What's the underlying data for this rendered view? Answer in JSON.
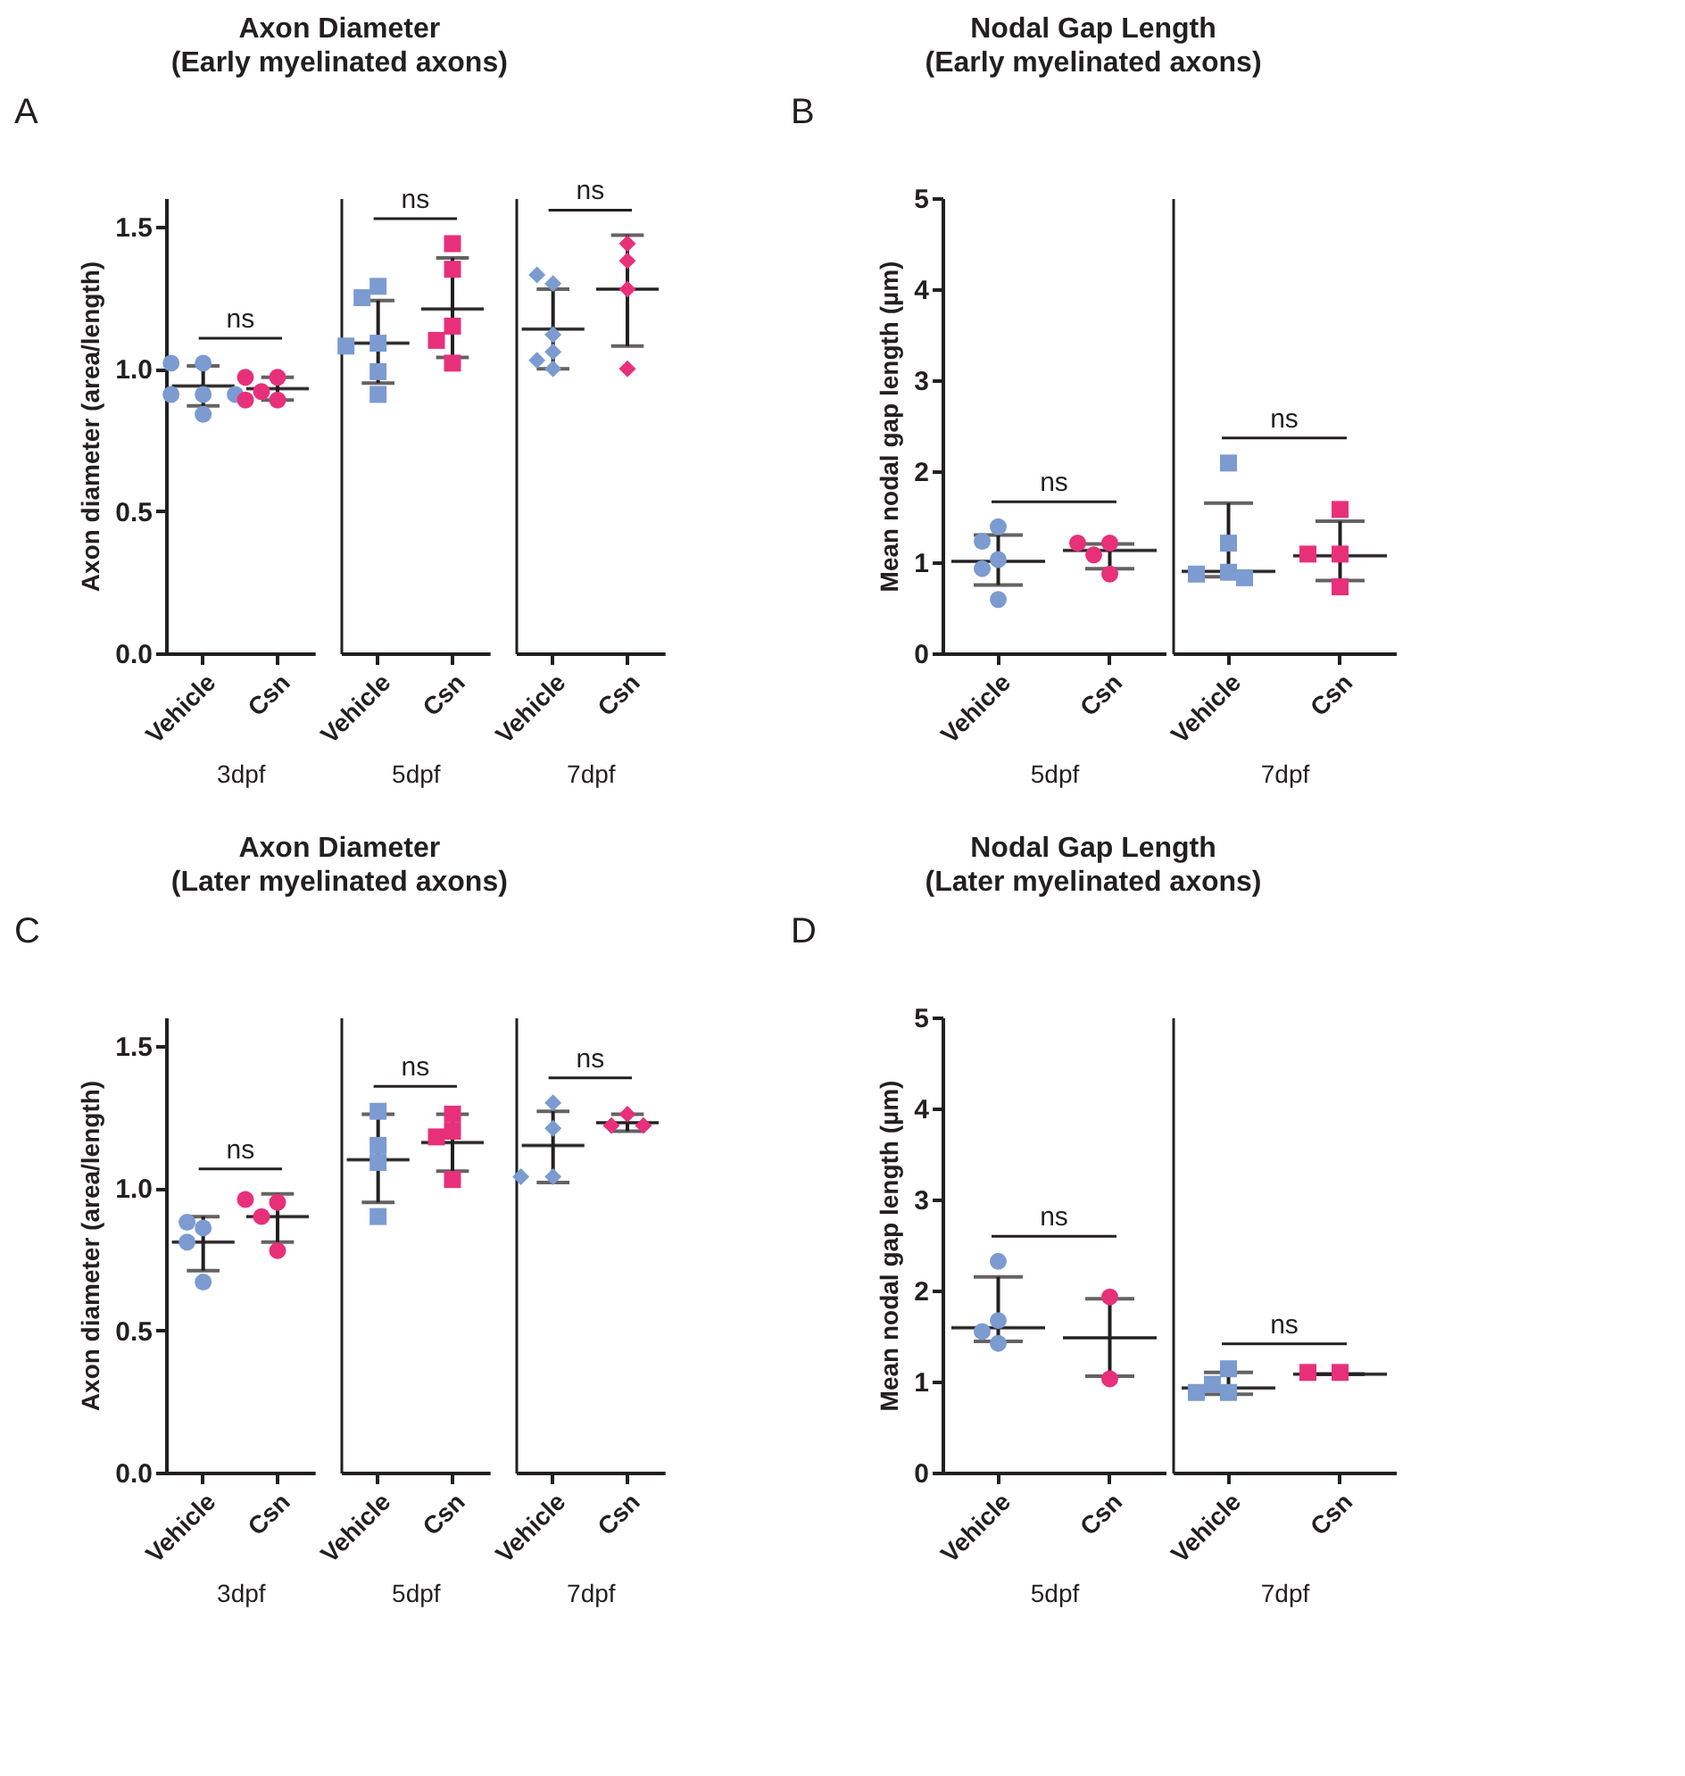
{
  "chart_data": [
    {
      "type": "scatter",
      "title": "Axon Diameter",
      "subtitle": "(Early myelinated axons)",
      "ylabel": "Axon diameter (area/length)",
      "xlabel": "3dpf",
      "categories": [
        "Vehicle",
        "Csn"
      ],
      "ylim": [
        0,
        1.6
      ],
      "yticks": [
        {
          "value": 0,
          "label": "0.0"
        },
        {
          "value": 0.5,
          "label": "0.5"
        },
        {
          "value": 1,
          "label": "1.0"
        },
        {
          "value": 1.5,
          "label": "1.5"
        }
      ],
      "annotations": [
        "A",
        "ns"
      ],
      "series": [
        {
          "type": "scatter",
          "marker": "circle",
          "color": "#7b9bd1",
          "x": [
            "Vehicle",
            "Vehicle",
            "Vehicle",
            "Vehicle",
            "Vehicle",
            "Vehicle"
          ],
          "values": [
            1.02,
            1.02,
            0.91,
            0.91,
            0.91,
            0.84
          ]
        },
        {
          "type": "scatter",
          "marker": "circle",
          "color": "#e8307a",
          "x": [
            "Csn",
            "Csn",
            "Csn",
            "Csn",
            "Csn"
          ],
          "values": [
            0.97,
            0.97,
            0.92,
            0.89,
            0.89
          ]
        },
        {
          "type": "box",
          "color": "#231f20",
          "boxes": [
            {
              "low": 0.87,
              "q1": 0.94,
              "median": 0.94,
              "q3": 0.94,
              "high": 1.01
            },
            {
              "low": 0.89,
              "q1": 0.93,
              "median": 0.93,
              "q3": 0.93,
              "high": 0.97
            }
          ]
        }
      ]
    },
    {
      "type": "scatter",
      "xlabel": "5dpf",
      "categories": [
        "Vehicle",
        "Csn"
      ],
      "ylim": [
        0,
        1.6
      ],
      "tick_labels": "x",
      "annotations": [
        "ns"
      ],
      "series": [
        {
          "type": "scatter",
          "marker": "square",
          "color": "#7b9bd1",
          "x": [
            "Vehicle",
            "Vehicle",
            "Vehicle",
            "Vehicle",
            "Vehicle",
            "Vehicle"
          ],
          "values": [
            1.29,
            1.25,
            1.09,
            1.08,
            0.99,
            0.91
          ]
        },
        {
          "type": "scatter",
          "marker": "square",
          "color": "#e8307a",
          "x": [
            "Csn",
            "Csn",
            "Csn",
            "Csn",
            "Csn"
          ],
          "values": [
            1.44,
            1.35,
            1.15,
            1.1,
            1.02
          ]
        },
        {
          "type": "box",
          "color": "#231f20",
          "boxes": [
            {
              "low": 0.95,
              "q1": 1.09,
              "median": 1.09,
              "q3": 1.09,
              "high": 1.24
            },
            {
              "low": 1.04,
              "q1": 1.21,
              "median": 1.21,
              "q3": 1.21,
              "high": 1.39
            }
          ]
        }
      ]
    },
    {
      "type": "scatter",
      "xlabel": "7dpf",
      "categories": [
        "Vehicle",
        "Csn"
      ],
      "ylim": [
        0,
        1.6
      ],
      "tick_labels": "x",
      "annotations": [
        "ns"
      ],
      "series": [
        {
          "type": "scatter",
          "marker": "diamond",
          "color": "#7b9bd1",
          "x": [
            "Vehicle",
            "Vehicle",
            "Vehicle",
            "Vehicle",
            "Vehicle",
            "Vehicle"
          ],
          "values": [
            1.3,
            1.33,
            1.12,
            1.06,
            1.03,
            1.0
          ]
        },
        {
          "type": "scatter",
          "marker": "diamond",
          "color": "#e8307a",
          "x": [
            "Csn",
            "Csn",
            "Csn",
            "Csn"
          ],
          "values": [
            1.44,
            1.38,
            1.28,
            1.0
          ]
        },
        {
          "type": "box",
          "color": "#231f20",
          "boxes": [
            {
              "low": 1.0,
              "q1": 1.14,
              "median": 1.14,
              "q3": 1.14,
              "high": 1.28
            },
            {
              "low": 1.08,
              "q1": 1.28,
              "median": 1.28,
              "q3": 1.28,
              "high": 1.47
            }
          ]
        }
      ]
    },
    {
      "type": "scatter",
      "title": "Nodal Gap Length",
      "subtitle": "(Early myelinated axons)",
      "ylabel": "Mean nodal gap length (µm)",
      "xlabel": "5dpf",
      "categories": [
        "Vehicle",
        "Csn"
      ],
      "ylim": [
        0,
        5
      ],
      "yticks": [
        0,
        1,
        2,
        3,
        4,
        5
      ],
      "annotations": [
        "B",
        "ns"
      ],
      "series": [
        {
          "type": "scatter",
          "marker": "circle",
          "color": "#7b9bd1",
          "x": [
            "Vehicle",
            "Vehicle",
            "Vehicle",
            "Vehicle",
            "Vehicle"
          ],
          "values": [
            1.39,
            1.23,
            1.03,
            0.93,
            0.59
          ]
        },
        {
          "type": "scatter",
          "marker": "circle",
          "color": "#e8307a",
          "x": [
            "Csn",
            "Csn",
            "Csn",
            "Csn"
          ],
          "values": [
            1.21,
            1.21,
            1.08,
            0.87
          ]
        },
        {
          "type": "box",
          "color": "#231f20",
          "boxes": [
            {
              "low": 0.75,
              "q1": 1.01,
              "median": 1.01,
              "q3": 1.01,
              "high": 1.3
            },
            {
              "low": 0.93,
              "q1": 1.13,
              "median": 1.13,
              "q3": 1.13,
              "high": 1.2
            }
          ]
        }
      ]
    },
    {
      "type": "scatter",
      "xlabel": "7dpf",
      "categories": [
        "Vehicle",
        "Csn"
      ],
      "ylim": [
        0,
        5
      ],
      "tick_labels": "x",
      "annotations": [
        "ns"
      ],
      "series": [
        {
          "type": "scatter",
          "marker": "square",
          "color": "#7b9bd1",
          "x": [
            "Vehicle",
            "Vehicle",
            "Vehicle",
            "Vehicle",
            "Vehicle"
          ],
          "values": [
            2.09,
            1.21,
            0.89,
            0.87,
            0.83
          ]
        },
        {
          "type": "scatter",
          "marker": "square",
          "color": "#e8307a",
          "x": [
            "Csn",
            "Csn",
            "Csn",
            "Csn"
          ],
          "values": [
            1.58,
            1.09,
            1.09,
            0.73
          ]
        },
        {
          "type": "box",
          "color": "#231f20",
          "boxes": [
            {
              "low": 0.84,
              "q1": 0.9,
              "median": 0.9,
              "q3": 0.9,
              "high": 1.65
            },
            {
              "low": 0.8,
              "q1": 1.07,
              "median": 1.07,
              "q3": 1.07,
              "high": 1.45
            }
          ]
        }
      ]
    },
    {
      "type": "scatter",
      "title": "Axon Diameter",
      "subtitle": "(Later myelinated axons)",
      "ylabel": "Axon diameter (area/length)",
      "xlabel": "3dpf",
      "categories": [
        "Vehicle",
        "Csn"
      ],
      "ylim": [
        0,
        1.6
      ],
      "yticks": [
        {
          "value": 0,
          "label": "0.0"
        },
        {
          "value": 0.5,
          "label": "0.5"
        },
        {
          "value": 1,
          "label": "1.0"
        },
        {
          "value": 1.5,
          "label": "1.5"
        }
      ],
      "annotations": [
        "C",
        "ns"
      ],
      "series": [
        {
          "type": "scatter",
          "marker": "circle",
          "color": "#7b9bd1",
          "x": [
            "Vehicle",
            "Vehicle",
            "Vehicle",
            "Vehicle"
          ],
          "values": [
            0.86,
            0.88,
            0.81,
            0.67
          ]
        },
        {
          "type": "scatter",
          "marker": "circle",
          "color": "#e8307a",
          "x": [
            "Csn",
            "Csn",
            "Csn",
            "Csn"
          ],
          "values": [
            0.95,
            0.96,
            0.9,
            0.78
          ]
        },
        {
          "type": "box",
          "color": "#231f20",
          "boxes": [
            {
              "low": 0.71,
              "q1": 0.81,
              "median": 0.81,
              "q3": 0.81,
              "high": 0.9
            },
            {
              "low": 0.81,
              "q1": 0.9,
              "median": 0.9,
              "q3": 0.9,
              "high": 0.98
            }
          ]
        }
      ]
    },
    {
      "type": "scatter",
      "xlabel": "5dpf",
      "categories": [
        "Vehicle",
        "Csn"
      ],
      "ylim": [
        0,
        1.6
      ],
      "tick_labels": "x",
      "annotations": [
        "ns"
      ],
      "series": [
        {
          "type": "scatter",
          "marker": "square",
          "color": "#7b9bd1",
          "x": [
            "Vehicle",
            "Vehicle",
            "Vehicle",
            "Vehicle"
          ],
          "values": [
            1.27,
            1.15,
            1.09,
            0.9
          ]
        },
        {
          "type": "scatter",
          "marker": "square",
          "color": "#e8307a",
          "x": [
            "Csn",
            "Csn",
            "Csn",
            "Csn"
          ],
          "values": [
            1.26,
            1.2,
            1.18,
            1.03
          ]
        },
        {
          "type": "box",
          "color": "#231f20",
          "boxes": [
            {
              "low": 0.95,
              "q1": 1.1,
              "median": 1.1,
              "q3": 1.1,
              "high": 1.26
            },
            {
              "low": 1.06,
              "q1": 1.16,
              "median": 1.16,
              "q3": 1.16,
              "high": 1.26
            }
          ]
        }
      ]
    },
    {
      "type": "scatter",
      "xlabel": "7dpf",
      "categories": [
        "Vehicle",
        "Csn"
      ],
      "ylim": [
        0,
        1.6
      ],
      "tick_labels": "x",
      "annotations": [
        "ns"
      ],
      "series": [
        {
          "type": "scatter",
          "marker": "diamond",
          "color": "#7b9bd1",
          "x": [
            "Vehicle",
            "Vehicle",
            "Vehicle",
            "Vehicle"
          ],
          "values": [
            1.3,
            1.21,
            1.04,
            1.04
          ]
        },
        {
          "type": "scatter",
          "marker": "diamond",
          "color": "#e8307a",
          "x": [
            "Csn",
            "Csn",
            "Csn"
          ],
          "values": [
            1.26,
            1.22,
            1.22
          ]
        },
        {
          "type": "box",
          "color": "#231f20",
          "boxes": [
            {
              "low": 1.02,
              "q1": 1.15,
              "median": 1.15,
              "q3": 1.15,
              "high": 1.27
            },
            {
              "low": 1.2,
              "q1": 1.23,
              "median": 1.23,
              "q3": 1.23,
              "high": 1.26
            }
          ]
        }
      ]
    },
    {
      "type": "scatter",
      "title": "Nodal Gap Length",
      "subtitle": "(Later myelinated axons)",
      "ylabel": "Mean nodal gap length (µm)",
      "xlabel": "5dpf",
      "categories": [
        "Vehicle",
        "Csn"
      ],
      "ylim": [
        0,
        5
      ],
      "yticks": [
        0,
        1,
        2,
        3,
        4,
        5
      ],
      "annotations": [
        "D",
        "ns"
      ],
      "series": [
        {
          "type": "scatter",
          "marker": "circle",
          "color": "#7b9bd1",
          "x": [
            "Vehicle",
            "Vehicle",
            "Vehicle",
            "Vehicle"
          ],
          "values": [
            2.32,
            1.67,
            1.55,
            1.42
          ]
        },
        {
          "type": "scatter",
          "marker": "circle",
          "color": "#e8307a",
          "x": [
            "Csn",
            "Csn"
          ],
          "values": [
            1.93,
            1.03
          ]
        },
        {
          "type": "box",
          "color": "#231f20",
          "boxes": [
            {
              "low": 1.44,
              "q1": 1.59,
              "median": 1.59,
              "q3": 1.59,
              "high": 2.15
            },
            {
              "low": 1.06,
              "q1": 1.48,
              "median": 1.48,
              "q3": 1.48,
              "high": 1.91
            }
          ]
        }
      ]
    },
    {
      "type": "scatter",
      "xlabel": "7dpf",
      "categories": [
        "Vehicle",
        "Csn"
      ],
      "ylim": [
        0,
        5
      ],
      "tick_labels": "x",
      "annotations": [
        "ns"
      ],
      "series": [
        {
          "type": "scatter",
          "marker": "square",
          "color": "#7b9bd1",
          "x": [
            "Vehicle",
            "Vehicle",
            "Vehicle",
            "Vehicle"
          ],
          "values": [
            1.14,
            0.97,
            0.88,
            0.88
          ]
        },
        {
          "type": "scatter",
          "marker": "square",
          "color": "#e8307a",
          "x": [
            "Csn",
            "Csn"
          ],
          "values": [
            1.1,
            1.1
          ]
        },
        {
          "type": "box",
          "color": "#231f20",
          "boxes": [
            {
              "low": 0.86,
              "q1": 0.93,
              "median": 0.93,
              "q3": 0.93,
              "high": 1.1
            },
            {
              "low": 1.08,
              "q1": 1.08,
              "median": 1.08,
              "q3": 1.08,
              "high": 1.08
            }
          ]
        }
      ]
    }
  ]
}
